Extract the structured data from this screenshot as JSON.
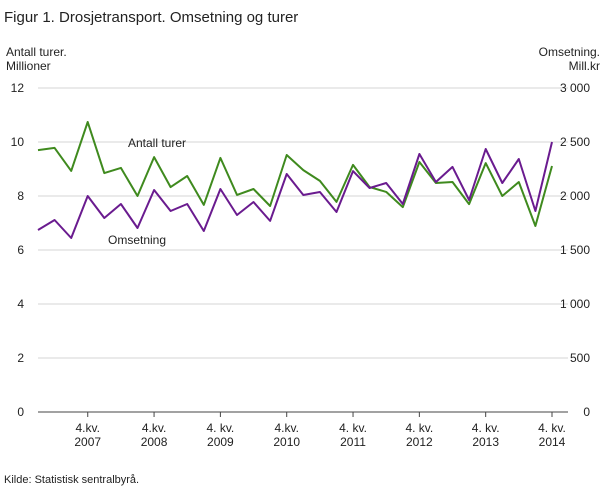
{
  "chart_data": {
    "type": "line",
    "title": "Figur 1. Drosjetransport. Omsetning og turer",
    "y_label": "Antall turer.\nMillioner",
    "y2_label": "Omsetning.\nMill.kr",
    "source": "Kilde: Statistisk sentralbyrå.",
    "categories": [
      null,
      null,
      null,
      "4.kv.\n2007",
      null,
      null,
      null,
      "4.kv.\n2008",
      null,
      null,
      null,
      "4. kv.\n2009",
      null,
      null,
      null,
      "4.kv.\n2010",
      null,
      null,
      null,
      "4. kv.\n2011",
      null,
      null,
      null,
      "4. kv.\n2012",
      null,
      null,
      null,
      "4. kv.\n2013",
      null,
      null,
      null,
      "4. kv.\n2014"
    ],
    "series": [
      {
        "name": "Antall turer",
        "color": "#3f8a1e",
        "values": [
          9.7,
          9.78,
          8.93,
          10.74,
          8.85,
          9.04,
          8.0,
          9.44,
          8.33,
          8.74,
          7.67,
          9.41,
          8.04,
          8.26,
          7.63,
          9.52,
          8.96,
          8.56,
          7.78,
          9.15,
          8.33,
          8.15,
          7.59,
          9.26,
          8.48,
          8.52,
          7.7,
          9.22,
          8.0,
          8.52,
          6.89,
          9.11
        ]
      },
      {
        "name": "Omsetning",
        "color": "#6a1b8f",
        "axis": "y2",
        "values": [
          1685,
          1778,
          1611,
          2000,
          1796,
          1926,
          1704,
          2056,
          1861,
          1926,
          1676,
          2065,
          1824,
          1944,
          1769,
          2204,
          2009,
          2037,
          1852,
          2231,
          2074,
          2120,
          1926,
          2389,
          2130,
          2269,
          1963,
          2435,
          2120,
          2343,
          1861,
          2500
        ]
      }
    ],
    "ylim": [
      0,
      12
    ],
    "yticks": [
      0,
      2,
      4,
      6,
      8,
      10,
      12
    ],
    "y2lim": [
      0,
      3000
    ],
    "y2ticks": [
      0,
      500,
      {
        "value": 1000,
        "label": "1 000"
      },
      {
        "value": 1500,
        "label": "1 500"
      },
      {
        "value": 2000,
        "label": "2 000"
      },
      {
        "value": 2500,
        "label": "2 500"
      },
      {
        "value": 3000,
        "label": "3 000"
      }
    ],
    "grid": true
  }
}
